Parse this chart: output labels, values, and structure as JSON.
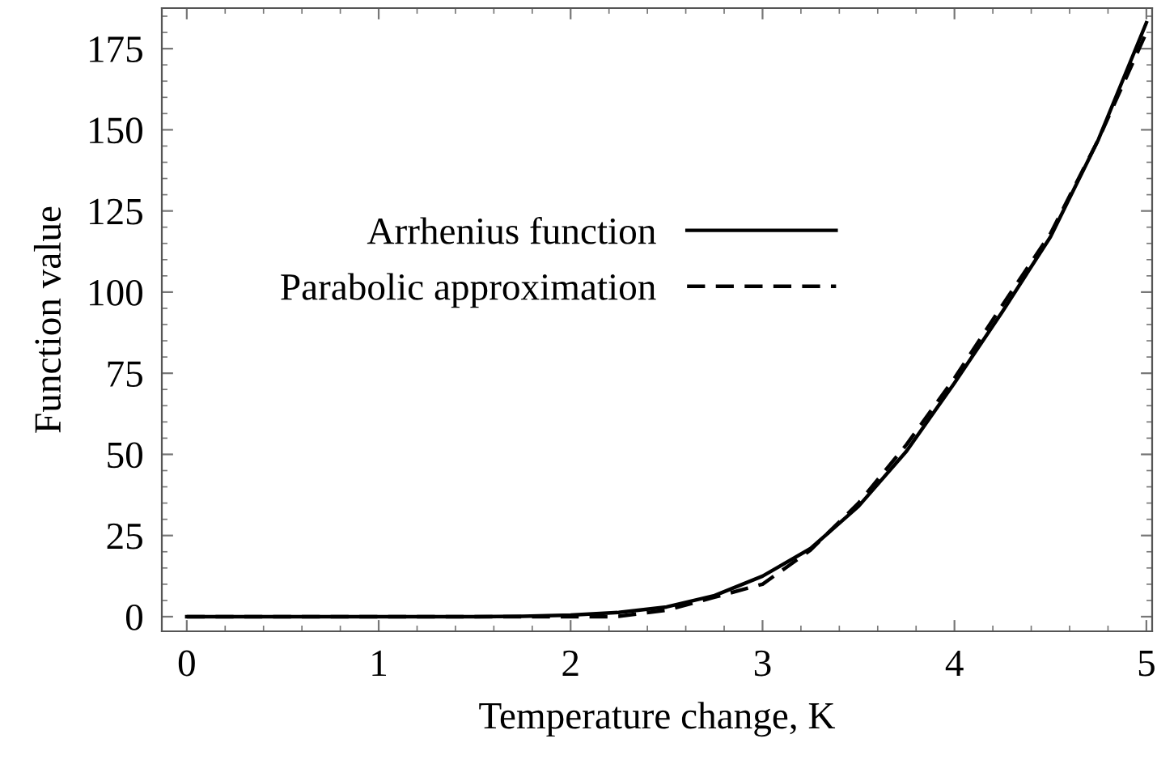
{
  "chart_data": {
    "type": "line",
    "xlabel": "Temperature change, K",
    "ylabel": "Function value",
    "xlim": [
      -0.13,
      5.03
    ],
    "ylim": [
      -4.5,
      187.5
    ],
    "xticks": [
      0,
      1,
      2,
      3,
      4,
      5
    ],
    "yticks": [
      0,
      25,
      50,
      75,
      100,
      125,
      150,
      175
    ],
    "grid": false,
    "legend": "top",
    "marker": "none",
    "series": [
      {
        "name": "Arrhenius function",
        "color": "#000000",
        "line_style": "solid",
        "x": [
          0,
          0.5,
          1,
          1.5,
          1.75,
          2,
          2.25,
          2.5,
          2.75,
          3,
          3.25,
          3.5,
          3.75,
          4,
          4.25,
          4.5,
          4.75,
          5
        ],
        "values": [
          0,
          0,
          0,
          0,
          0.1,
          0.5,
          1.3,
          3,
          6.5,
          12.5,
          21,
          34,
          51,
          72,
          94,
          117,
          147,
          183
        ]
      },
      {
        "name": "Parabolic approximation",
        "color": "#000000",
        "line_style": "dashed",
        "x": [
          0,
          0.5,
          1,
          1.5,
          2,
          2.2,
          2.25,
          2.5,
          2.75,
          3,
          3.25,
          3.5,
          3.75,
          4,
          4.25,
          4.5,
          4.75,
          5
        ],
        "values": [
          0,
          0,
          0,
          0,
          0,
          0,
          0.1,
          2,
          6,
          10,
          20.5,
          35,
          53,
          73.5,
          96,
          118,
          147,
          180
        ]
      }
    ]
  }
}
